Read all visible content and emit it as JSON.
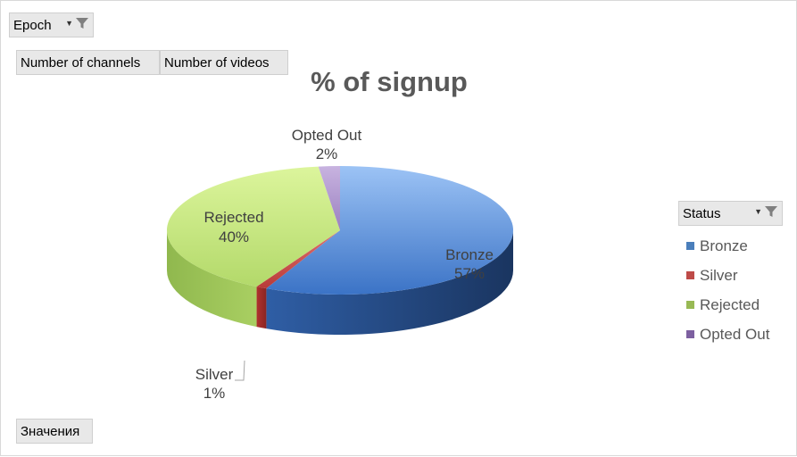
{
  "filters": {
    "report_filter": {
      "label": "Epoch"
    },
    "values_fields": [
      "Number of channels",
      "Number of videos"
    ],
    "row_field": {
      "label": "Status"
    },
    "values_button": {
      "label": "Значения"
    }
  },
  "chart_data": {
    "type": "pie",
    "title": "% of signup",
    "slices": [
      {
        "name": "Bronze",
        "value": 57,
        "label": "57%",
        "color": "#4a7ebb"
      },
      {
        "name": "Silver",
        "value": 1,
        "label": "1%",
        "color": "#be4b48"
      },
      {
        "name": "Rejected",
        "value": 40,
        "label": "40%",
        "color": "#98b954"
      },
      {
        "name": "Opted Out",
        "value": 2,
        "label": "2%",
        "color": "#7d60a0"
      }
    ],
    "legend_placement": "right",
    "three_d": true
  }
}
